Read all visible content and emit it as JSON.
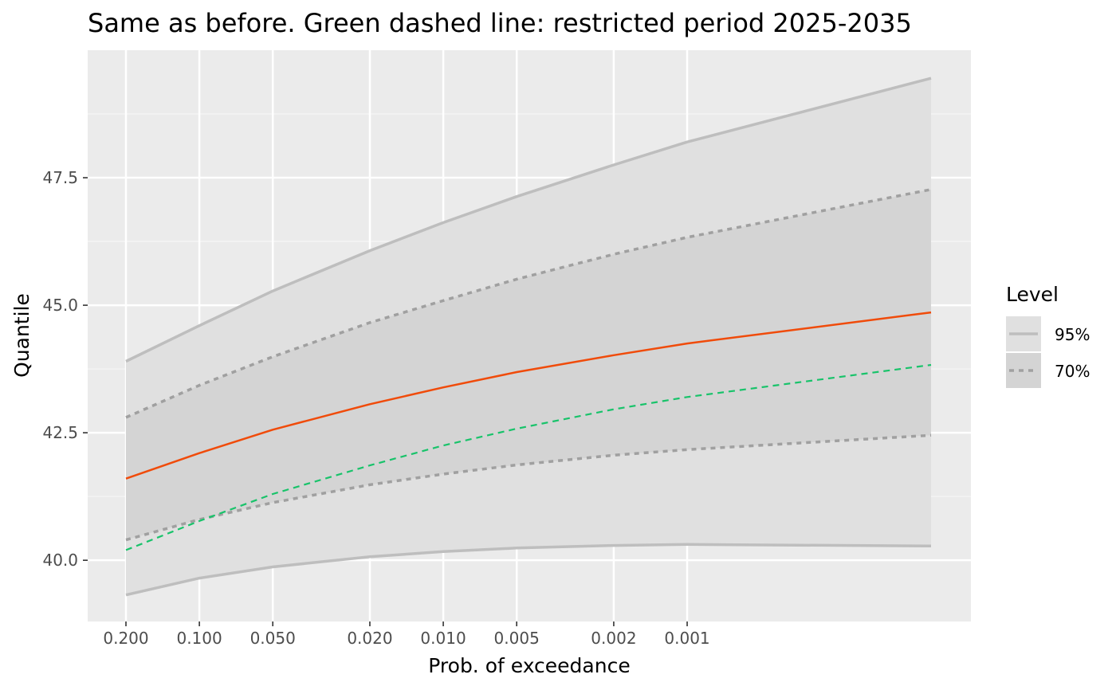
{
  "chart_data": {
    "type": "line",
    "title": "Same as before. Green dashed line: restricted period 2025-2035",
    "xlabel": "Prob. of exceedance",
    "ylabel": "Quantile",
    "x_scale": "log (reciprocal probability)",
    "x_ticks": [
      "0.200",
      "0.100",
      "0.050",
      "0.020",
      "0.010",
      "0.005",
      "0.002",
      "0.001"
    ],
    "x_tick_values": [
      0.2,
      0.1,
      0.05,
      0.02,
      0.01,
      0.005,
      0.002,
      0.001
    ],
    "xlim": [
      0.2,
      0.0001
    ],
    "y_ticks": [
      "40.0",
      "42.5",
      "45.0",
      "47.5"
    ],
    "y_tick_values": [
      40.0,
      42.5,
      45.0,
      47.5
    ],
    "ylim": [
      38.8,
      50.0
    ],
    "grid": true,
    "legend": {
      "title": "Level",
      "placement": "right",
      "entries": [
        {
          "label": "95%",
          "style": "solid",
          "color": "#bebebe"
        },
        {
          "label": "70%",
          "style": "dotted",
          "color": "#a0a0a0"
        }
      ]
    },
    "x": [
      0.2,
      0.1,
      0.05,
      0.02,
      0.01,
      0.005,
      0.002,
      0.001,
      0.0001
    ],
    "series": [
      {
        "level": "95%",
        "bound": "upper",
        "color": "#bebebe",
        "style": "solid",
        "values": [
          43.9,
          44.6,
          45.28,
          46.07,
          46.62,
          47.13,
          47.75,
          48.2,
          49.45
        ]
      },
      {
        "level": "95%",
        "bound": "lower",
        "color": "#bebebe",
        "style": "solid",
        "values": [
          39.32,
          39.65,
          39.87,
          40.07,
          40.17,
          40.24,
          40.29,
          40.31,
          40.28
        ]
      },
      {
        "level": "70%",
        "bound": "upper",
        "color": "#a0a0a0",
        "style": "dotted",
        "values": [
          42.8,
          43.43,
          43.99,
          44.66,
          45.09,
          45.51,
          46.0,
          46.33,
          47.27
        ]
      },
      {
        "level": "70%",
        "bound": "lower",
        "color": "#a0a0a0",
        "style": "dotted",
        "values": [
          40.4,
          40.8,
          41.13,
          41.48,
          41.69,
          41.87,
          42.06,
          42.17,
          42.45
        ]
      },
      {
        "role": "estimate",
        "color": "#f04b0a",
        "style": "solid",
        "values": [
          41.6,
          42.1,
          42.56,
          43.06,
          43.39,
          43.69,
          44.02,
          44.25,
          44.86
        ]
      },
      {
        "role": "restricted period 2025-2035",
        "color": "#18c36a",
        "style": "dashed",
        "values": [
          40.2,
          40.77,
          41.3,
          41.86,
          42.25,
          42.58,
          42.96,
          43.2,
          43.83
        ]
      }
    ],
    "colors": {
      "panel_background": "#ebebeb",
      "band_95": "#e0e0e0",
      "band_70": "#d4d4d4",
      "grid": "#ffffff",
      "estimate": "#f04b0a",
      "restricted": "#18c36a"
    }
  }
}
